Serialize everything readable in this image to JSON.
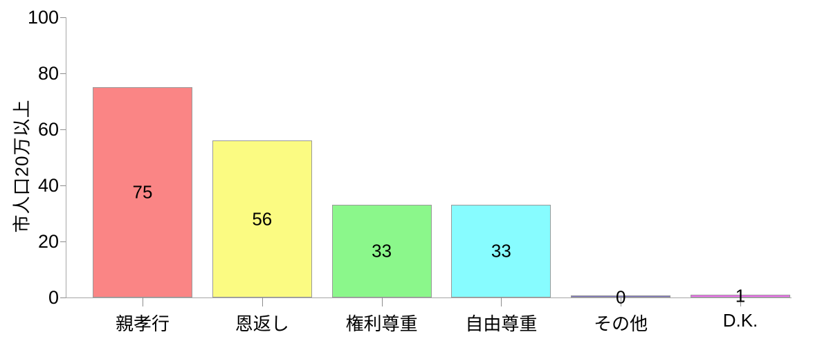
{
  "chart_data": {
    "type": "bar",
    "title": "",
    "xlabel": "",
    "ylabel": "市人口20万以上",
    "categories": [
      "親孝行",
      "恩返し",
      "権利尊重",
      "自由尊重",
      "その他",
      "D.K."
    ],
    "values": [
      75,
      56,
      33,
      33,
      0,
      1
    ],
    "bar_labels": [
      "75",
      "56",
      "33",
      "33",
      "0",
      "1"
    ],
    "bar_colors": [
      "#fa8585",
      "#fbfb82",
      "#8bf78b",
      "#87fcff",
      "#7a70c2",
      "#ef70ef"
    ],
    "bar_border_color": "#999999",
    "ylim": [
      0,
      100
    ],
    "yticks": [
      0,
      20,
      40,
      60,
      80,
      100
    ],
    "ytick_labels": [
      "0",
      "20",
      "40",
      "60",
      "80",
      "100"
    ],
    "axis_color": "#a6a6a6",
    "text_color": "#000000",
    "grid": false,
    "legend": false
  }
}
